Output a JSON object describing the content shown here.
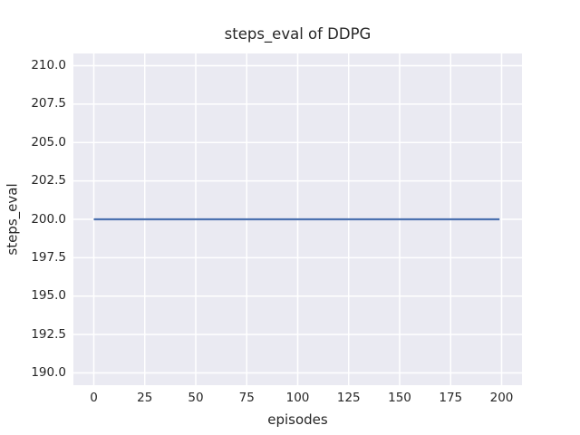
{
  "figure": {
    "title": "steps_eval of DDPG",
    "xlabel": "episodes",
    "ylabel": "steps_eval"
  },
  "chart_data": {
    "type": "line",
    "title": "steps_eval of DDPG",
    "xlabel": "episodes",
    "ylabel": "steps_eval",
    "series": [
      {
        "name": "DDPG steps_eval",
        "color": "#4c72b0",
        "linewidth": 2.2,
        "constant_value": 200,
        "x": [
          0,
          199
        ],
        "y": [
          200,
          200
        ]
      }
    ],
    "xlim": [
      -10,
      210
    ],
    "ylim": [
      189.2,
      210.8
    ],
    "xticks": [
      0,
      25,
      50,
      75,
      100,
      125,
      150,
      175,
      200
    ],
    "xtick_labels": [
      "0",
      "25",
      "50",
      "75",
      "100",
      "125",
      "150",
      "175",
      "200"
    ],
    "yticks": [
      190.0,
      192.5,
      195.0,
      197.5,
      200.0,
      202.5,
      205.0,
      207.5,
      210.0
    ],
    "ytick_labels": [
      "190.0",
      "192.5",
      "195.0",
      "197.5",
      "200.0",
      "202.5",
      "205.0",
      "207.5",
      "210.0"
    ],
    "grid": true,
    "legend": "none",
    "style": {
      "figure_background": "#ffffff",
      "axes_background": "#eaeaf2",
      "grid_color": "#ffffff",
      "grid_linewidth": 1.5,
      "text_color": "#262626",
      "line_color": "#4c72b0"
    }
  }
}
